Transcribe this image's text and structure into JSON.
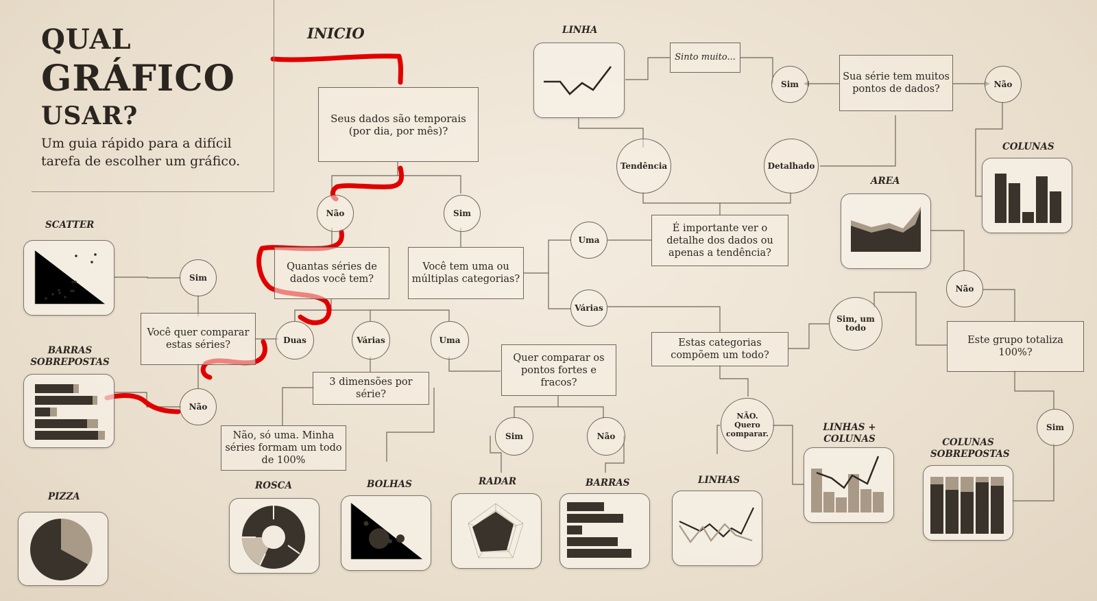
{
  "title": {
    "line1": "QUAL",
    "line2": "GRÁFICO",
    "line3": "USAR?",
    "subtitle_line1": "Um guia rápido para a difícil",
    "subtitle_line2": "tarefa de escolher um gráfico."
  },
  "start_label": "INICIO",
  "questions": {
    "temporal": "Seus dados são temporais (por dia, por mês)?",
    "series_count": "Quantas séries de dados você tem?",
    "categories": "Você tem uma ou múltiplas categorias?",
    "compare_series": "Você quer comparar estas séries?",
    "three_dims": "3 dimensões por série?",
    "one_series": "Não, só uma. Minha séries formam um todo de 100%",
    "strengths": "Quer comparar os pontos fortes e fracos?",
    "detail": "É importante ver o detalhe dos dados ou apenas a tendência?",
    "whole": "Estas categorias compõem um todo?",
    "many_points": "Sua série tem muitos pontos de dados?",
    "feel": "Sinto muito...",
    "total100": "Este grupo totaliza 100%?"
  },
  "answers": {
    "nao_temporal": "Não",
    "sim_temporal": "Sim",
    "duas": "Duas",
    "varias_series": "Várias",
    "uma_series": "Uma",
    "sim_compare": "Sim",
    "nao_compare": "Não",
    "uma_cat": "Uma",
    "varias_cat": "Várias",
    "sim_strength": "Sim",
    "nao_strength": "Não",
    "tendencia": "Tendência",
    "detalhado": "Detalhado",
    "sim_many": "Sim",
    "nao_many": "Não",
    "sim_whole": "Sim, um todo",
    "nao_whole": "NÃO. Quero comparar.",
    "nao_total": "Não",
    "sim_total": "Sim"
  },
  "charts": {
    "scatter": "SCATTER",
    "barras_sobrepostas": "BARRAS SOBREPOSTAS",
    "pizza": "PIZZA",
    "rosca": "ROSCA",
    "bolhas": "BOLHAS",
    "radar": "RADAR",
    "barras": "BARRAS",
    "linhas": "LINHAS",
    "linhas_colunas": "LINHAS + COLUNAS",
    "colunas_sobrepostas": "COLUNAS SOBREPOSTAS",
    "linha": "LINHA",
    "colunas": "COLUNAS",
    "area": "AREA"
  },
  "colors": {
    "ink": "#2b2621",
    "dark": "#3a332c",
    "mid": "#a89a86",
    "light": "#c9bcaa",
    "highlight": "#e00000"
  }
}
